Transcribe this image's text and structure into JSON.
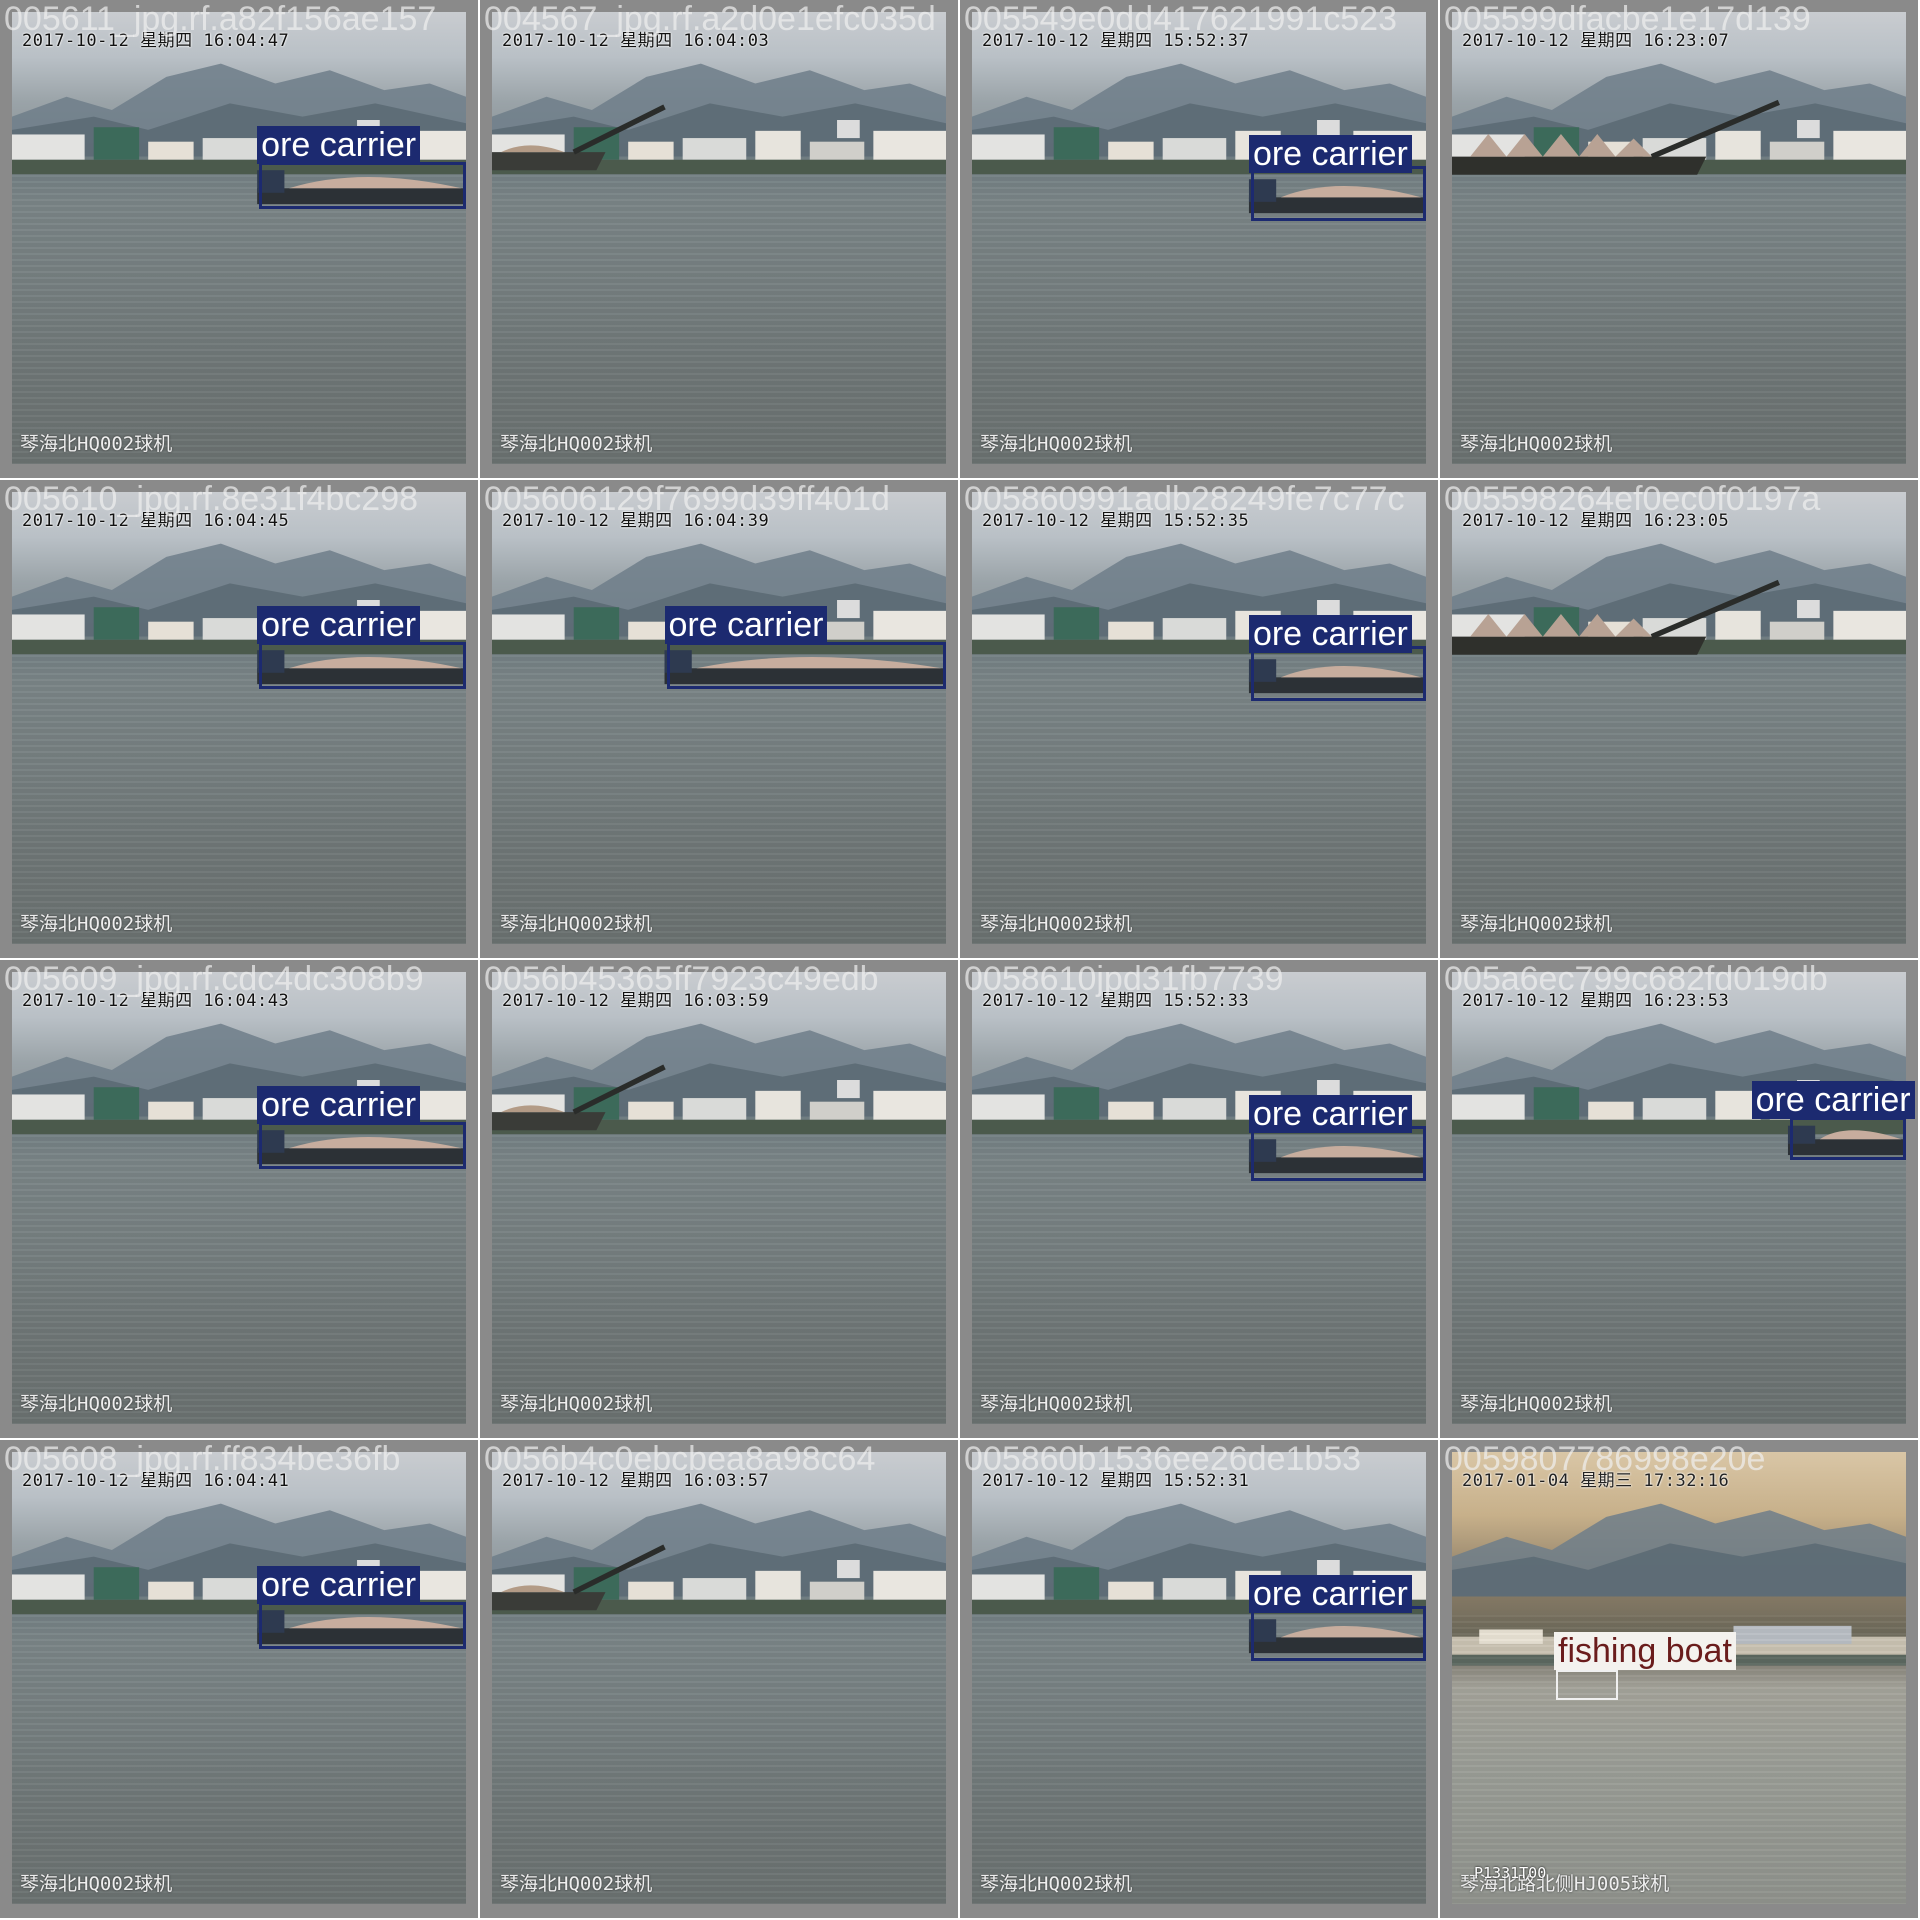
{
  "mosaic": {
    "tiles": [
      {
        "filename": "005611_jpg.rf.a82f156ae157",
        "timestamp": "2017-10-12 星期四 16:04:47",
        "camera": "琴海北HQ002球机",
        "label": "ore carrier",
        "scene": "carrier-right"
      },
      {
        "filename": "004567_jpg.rf.a2d0e1efc035d",
        "timestamp": "2017-10-12 星期四 16:04:03",
        "camera": "琴海北HQ002球机",
        "label": "",
        "scene": "crane-left"
      },
      {
        "filename": "005549e0dd417621991c523",
        "timestamp": "2017-10-12 星期四 15:52:37",
        "camera": "琴海北HQ002球机",
        "label": "ore carrier",
        "scene": "carrier-far-right"
      },
      {
        "filename": "005599dfacbe1e17d139",
        "timestamp": "2017-10-12 星期四 16:23:07",
        "camera": "琴海北HQ002球机",
        "label": "",
        "scene": "crane-long"
      },
      {
        "filename": "005610_jpg.rf.8e31f4bc298",
        "timestamp": "2017-10-12 星期四 16:04:45",
        "camera": "琴海北HQ002球机",
        "label": "ore carrier",
        "scene": "carrier-right"
      },
      {
        "filename": "005606129f7699d39ff401d",
        "timestamp": "2017-10-12 星期四 16:04:39",
        "camera": "琴海北HQ002球机",
        "label": "ore carrier",
        "scene": "carrier-mid"
      },
      {
        "filename": "005860991adb28249fe7c77c",
        "timestamp": "2017-10-12 星期四 15:52:35",
        "camera": "琴海北HQ002球机",
        "label": "ore carrier",
        "scene": "carrier-far-right"
      },
      {
        "filename": "005598264ef0ec0f0197a",
        "timestamp": "2017-10-12 星期四 16:23:05",
        "camera": "琴海北HQ002球机",
        "label": "",
        "scene": "crane-long"
      },
      {
        "filename": "005609_jpg.rf.cdc4dc308b9",
        "timestamp": "2017-10-12 星期四 16:04:43",
        "camera": "琴海北HQ002球机",
        "label": "ore carrier",
        "scene": "carrier-right"
      },
      {
        "filename": "0056b45365ff7923c49edb",
        "timestamp": "2017-10-12 星期四 16:03:59",
        "camera": "琴海北HQ002球机",
        "label": "",
        "scene": "crane-left"
      },
      {
        "filename": "0058610jpd31fb7739",
        "timestamp": "2017-10-12 星期四 15:52:33",
        "camera": "琴海北HQ002球机",
        "label": "ore carrier",
        "scene": "carrier-far-right"
      },
      {
        "filename": "005a6ec799c682fd019db",
        "timestamp": "2017-10-12 星期四 16:23:53",
        "camera": "琴海北HQ002球机",
        "label": "ore carrier",
        "scene": "carrier-edge"
      },
      {
        "filename": "005608_jpg.rf.ff834be36fb",
        "timestamp": "2017-10-12 星期四 16:04:41",
        "camera": "琴海北HQ002球机",
        "label": "ore carrier",
        "scene": "carrier-right"
      },
      {
        "filename": "0056b4c0ebcbea8a98c64",
        "timestamp": "2017-10-12 星期四 16:03:57",
        "camera": "琴海北HQ002球机",
        "label": "",
        "scene": "crane-left"
      },
      {
        "filename": "005860b1536ee26de1b53",
        "timestamp": "2017-10-12 星期四 15:52:31",
        "camera": "琴海北HQ002球机",
        "label": "ore carrier",
        "scene": "carrier-far-right"
      },
      {
        "filename": "0059807786998e20e",
        "timestamp": "2017-01-04 星期三 17:32:16",
        "camera": "琴海北路北侧HJ005球机",
        "overlay_code": "P1331T00",
        "label": "fishing boat",
        "scene": "dusk-fishing"
      }
    ]
  }
}
